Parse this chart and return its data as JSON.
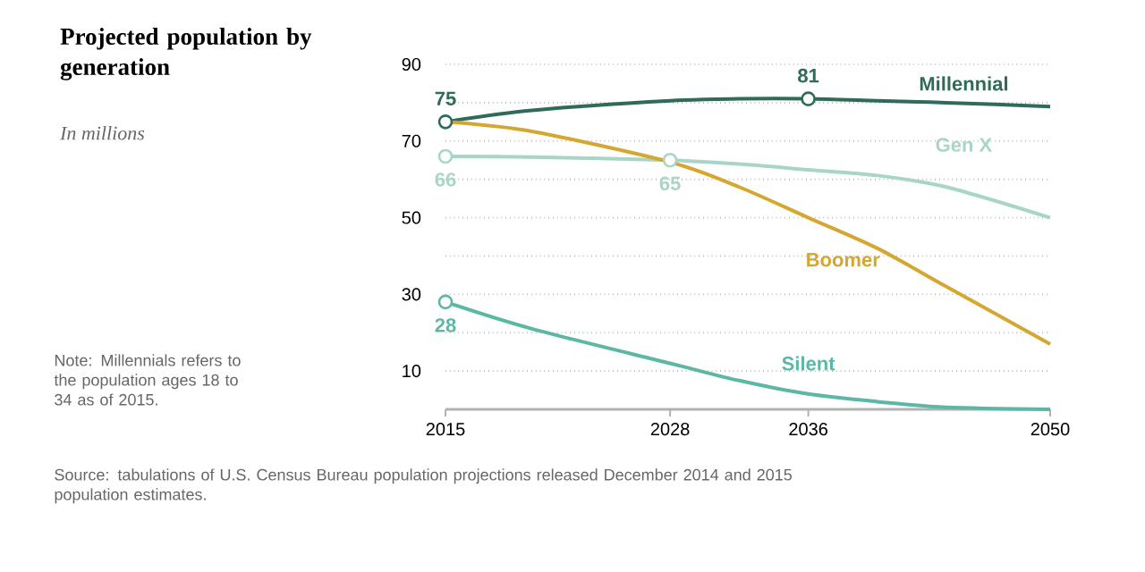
{
  "chart_data": {
    "type": "line",
    "title": "Projected population by generation",
    "subtitle": "In millions",
    "annotations": [
      "Note: Millennials refers to the population ages 18 to 34 as of 2015.",
      "Source: tabulations of U.S. Census Bureau population projections released December 2014 and 2015 population estimates."
    ],
    "x": [
      2015,
      2020,
      2028,
      2032,
      2036,
      2040,
      2044,
      2050
    ],
    "series": [
      {
        "name": "Millennial",
        "color": "#2e6b5a",
        "values": [
          75,
          78,
          80.5,
          81,
          81,
          80.5,
          80,
          79
        ],
        "value_labels": [
          "75",
          null,
          null,
          null,
          "81",
          null,
          null,
          null
        ]
      },
      {
        "name": "Gen X",
        "color": "#a8d5c8",
        "values": [
          66,
          65.8,
          65,
          64,
          62.5,
          61,
          58,
          50
        ],
        "value_labels": [
          "66",
          null,
          "65",
          null,
          null,
          null,
          null,
          null
        ]
      },
      {
        "name": "Boomer",
        "color": "#d4a731",
        "values": [
          75,
          72.5,
          64.5,
          58,
          50,
          42,
          32,
          17
        ],
        "value_labels": [
          null,
          null,
          null,
          null,
          null,
          null,
          null,
          null
        ]
      },
      {
        "name": "Silent",
        "color": "#5cb8a5",
        "values": [
          28,
          21,
          12,
          7.5,
          4,
          2,
          0.5,
          0
        ],
        "value_labels": [
          "28",
          null,
          null,
          null,
          null,
          null,
          null,
          null
        ]
      }
    ],
    "xlim": [
      2015,
      2050
    ],
    "xticks": [
      2015,
      2028,
      2036,
      2050
    ],
    "ylim": [
      0,
      90
    ],
    "yticks": [
      10,
      {
        "value": 20,
        "label": null
      },
      30,
      {
        "value": 40,
        "label": null
      },
      50,
      {
        "value": 60,
        "label": null
      },
      70,
      {
        "value": 80,
        "label": null
      },
      90
    ],
    "grid": "y",
    "legend": false,
    "line_style": "solid"
  }
}
